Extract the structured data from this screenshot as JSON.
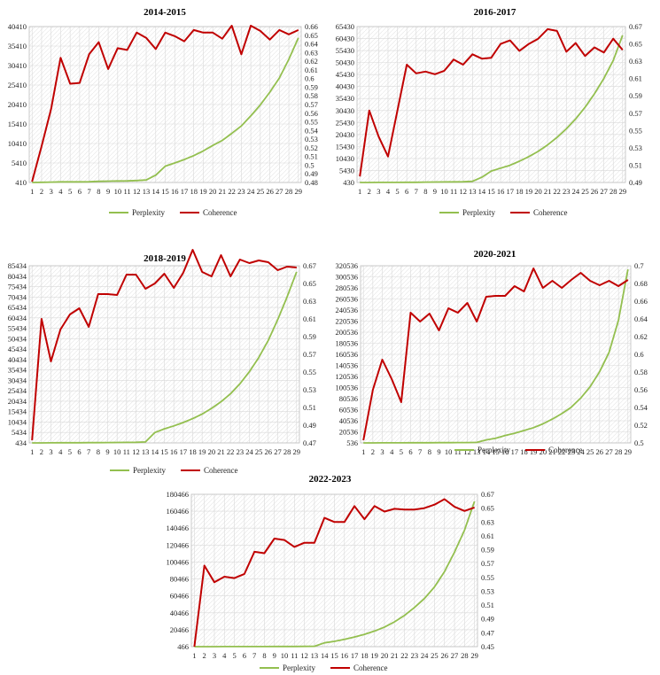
{
  "legend": {
    "perplexity": "Perplexity",
    "coherence": "Coherence"
  },
  "colors": {
    "perplexity": "#93bf4f",
    "coherence": "#c00000"
  },
  "chart_data": [
    {
      "type": "line",
      "title": "2014-2015",
      "x": [
        1,
        2,
        3,
        4,
        5,
        6,
        7,
        8,
        9,
        10,
        11,
        12,
        13,
        14,
        15,
        16,
        17,
        18,
        19,
        20,
        21,
        22,
        23,
        24,
        25,
        26,
        27,
        28,
        29
      ],
      "left_ticks": [
        "410",
        "5410",
        "10410",
        "15410",
        "20410",
        "25410",
        "30410",
        "35410",
        "40410"
      ],
      "right_ticks": [
        "0.48",
        "0.49",
        "0.5",
        "0.51",
        "0.52",
        "0.53",
        "0.54",
        "0.55",
        "0.56",
        "0.57",
        "0.58",
        "0.59",
        "0.6",
        "0.61",
        "0.62",
        "0.63",
        "0.64",
        "0.65",
        "0.66"
      ],
      "ylim_left": [
        410,
        40410
      ],
      "ylim_right": [
        0.48,
        0.66
      ],
      "series": [
        {
          "name": "Perplexity",
          "axis": "left",
          "values": [
            410,
            460,
            490,
            560,
            580,
            580,
            600,
            700,
            760,
            800,
            820,
            900,
            1050,
            2300,
            4600,
            5400,
            6300,
            7300,
            8500,
            9900,
            11200,
            13000,
            14900,
            17500,
            20300,
            23600,
            27200,
            32000,
            37500
          ]
        },
        {
          "name": "Coherence",
          "axis": "right",
          "values": [
            0.481,
            0.522,
            0.565,
            0.624,
            0.594,
            0.595,
            0.628,
            0.642,
            0.611,
            0.635,
            0.633,
            0.653,
            0.647,
            0.634,
            0.653,
            0.649,
            0.643,
            0.656,
            0.653,
            0.653,
            0.646,
            0.661,
            0.628,
            0.661,
            0.655,
            0.645,
            0.656,
            0.651,
            0.656
          ]
        }
      ]
    },
    {
      "type": "line",
      "title": "2016-2017",
      "x": [
        1,
        2,
        3,
        4,
        5,
        6,
        7,
        8,
        9,
        10,
        11,
        12,
        13,
        14,
        15,
        16,
        17,
        18,
        19,
        20,
        21,
        22,
        23,
        24,
        25,
        26,
        27,
        28,
        29
      ],
      "left_ticks": [
        "430",
        "5430",
        "10430",
        "15430",
        "20430",
        "25430",
        "30430",
        "35430",
        "40430",
        "45430",
        "50430",
        "55430",
        "60430",
        "65430"
      ],
      "right_ticks": [
        "0.49",
        "0.51",
        "0.53",
        "0.55",
        "0.57",
        "0.59",
        "0.61",
        "0.63",
        "0.65",
        "0.67"
      ],
      "ylim_left": [
        430,
        65430
      ],
      "ylim_right": [
        0.49,
        0.67
      ],
      "series": [
        {
          "name": "Perplexity",
          "axis": "left",
          "values": [
            430,
            440,
            450,
            460,
            480,
            500,
            520,
            560,
            600,
            640,
            680,
            720,
            900,
            2600,
            5200,
            6400,
            7600,
            9300,
            11200,
            13400,
            16100,
            19200,
            22800,
            26900,
            31800,
            37400,
            43800,
            51300,
            61800
          ]
        },
        {
          "name": "Coherence",
          "axis": "right",
          "values": [
            0.497,
            0.573,
            0.543,
            0.52,
            0.573,
            0.626,
            0.616,
            0.618,
            0.615,
            0.619,
            0.632,
            0.626,
            0.638,
            0.633,
            0.634,
            0.65,
            0.654,
            0.642,
            0.65,
            0.656,
            0.667,
            0.665,
            0.641,
            0.651,
            0.636,
            0.646,
            0.64,
            0.656,
            0.643
          ]
        }
      ]
    },
    {
      "type": "line",
      "title": "2018-2019",
      "x": [
        1,
        2,
        3,
        4,
        5,
        6,
        7,
        8,
        9,
        10,
        11,
        12,
        13,
        14,
        15,
        16,
        17,
        18,
        19,
        20,
        21,
        22,
        23,
        24,
        25,
        26,
        27,
        28,
        29
      ],
      "left_ticks": [
        "434",
        "5434",
        "10434",
        "15434",
        "20434",
        "25434",
        "30434",
        "35434",
        "40434",
        "45434",
        "50434",
        "55434",
        "60434",
        "65434",
        "70434",
        "75434",
        "80434",
        "85434"
      ],
      "right_ticks": [
        "0.47",
        "0.49",
        "0.51",
        "0.53",
        "0.55",
        "0.57",
        "0.59",
        "0.61",
        "0.63",
        "0.65",
        "0.67"
      ],
      "ylim_left": [
        434,
        85434
      ],
      "ylim_right": [
        0.47,
        0.67
      ],
      "series": [
        {
          "name": "Perplexity",
          "axis": "left",
          "values": [
            434,
            450,
            460,
            500,
            520,
            540,
            560,
            580,
            600,
            640,
            680,
            720,
            900,
            5400,
            7200,
            8600,
            10200,
            12100,
            14300,
            17000,
            20200,
            24000,
            28800,
            34600,
            41400,
            49600,
            59600,
            70500,
            82500
          ]
        },
        {
          "name": "Coherence",
          "axis": "right",
          "values": [
            0.473,
            0.61,
            0.562,
            0.598,
            0.615,
            0.622,
            0.601,
            0.638,
            0.638,
            0.637,
            0.66,
            0.66,
            0.644,
            0.65,
            0.661,
            0.645,
            0.662,
            0.688,
            0.663,
            0.658,
            0.682,
            0.658,
            0.677,
            0.673,
            0.676,
            0.674,
            0.665,
            0.669,
            0.668
          ]
        }
      ]
    },
    {
      "type": "line",
      "title": "2020-2021",
      "x": [
        1,
        2,
        3,
        4,
        5,
        6,
        7,
        8,
        9,
        10,
        11,
        12,
        13,
        14,
        15,
        16,
        17,
        18,
        19,
        20,
        21,
        22,
        23,
        24,
        25,
        26,
        27,
        28,
        29
      ],
      "left_ticks": [
        "536",
        "20536",
        "40536",
        "60536",
        "80536",
        "100536",
        "120536",
        "140536",
        "160536",
        "180536",
        "200536",
        "220536",
        "240536",
        "260536",
        "280536",
        "300536",
        "320536"
      ],
      "right_ticks": [
        "0.5",
        "0.52",
        "0.54",
        "0.56",
        "0.58",
        "0.6",
        "0.62",
        "0.64",
        "0.66",
        "0.68",
        "0.7"
      ],
      "ylim_left": [
        536,
        320536
      ],
      "ylim_right": [
        0.5,
        0.7
      ],
      "series": [
        {
          "name": "Perplexity",
          "axis": "left",
          "values": [
            536,
            600,
            650,
            700,
            750,
            800,
            850,
            900,
            950,
            1000,
            1100,
            1200,
            1500,
            6000,
            9000,
            14000,
            18000,
            23000,
            28000,
            35000,
            43500,
            53500,
            65000,
            81500,
            102000,
            129000,
            164000,
            222000,
            314000
          ]
        },
        {
          "name": "Coherence",
          "axis": "right",
          "values": [
            0.503,
            0.56,
            0.594,
            0.572,
            0.546,
            0.647,
            0.637,
            0.646,
            0.627,
            0.652,
            0.647,
            0.658,
            0.637,
            0.665,
            0.666,
            0.666,
            0.677,
            0.671,
            0.697,
            0.675,
            0.683,
            0.675,
            0.684,
            0.692,
            0.683,
            0.678,
            0.683,
            0.677,
            0.684
          ]
        }
      ]
    },
    {
      "type": "line",
      "title": "2022-2023",
      "x": [
        1,
        2,
        3,
        4,
        5,
        6,
        7,
        8,
        9,
        10,
        11,
        12,
        13,
        14,
        15,
        16,
        17,
        18,
        19,
        20,
        21,
        22,
        23,
        24,
        25,
        26,
        27,
        28,
        29
      ],
      "left_ticks": [
        "466",
        "20466",
        "40466",
        "60466",
        "80466",
        "100466",
        "120466",
        "140466",
        "160466",
        "180466"
      ],
      "right_ticks": [
        "0.45",
        "0.47",
        "0.49",
        "0.51",
        "0.53",
        "0.55",
        "0.57",
        "0.59",
        "0.61",
        "0.63",
        "0.65",
        "0.67"
      ],
      "ylim_left": [
        466,
        180466
      ],
      "ylim_right": [
        0.45,
        0.67
      ],
      "series": [
        {
          "name": "Perplexity",
          "axis": "left",
          "values": [
            466,
            490,
            510,
            530,
            550,
            570,
            590,
            610,
            640,
            680,
            720,
            760,
            900,
            5000,
            6700,
            9000,
            11900,
            15000,
            18900,
            23600,
            29800,
            37400,
            46700,
            57300,
            71000,
            89000,
            112000,
            138000,
            172000
          ]
        },
        {
          "name": "Coherence",
          "axis": "right",
          "values": [
            0.45,
            0.567,
            0.543,
            0.551,
            0.549,
            0.555,
            0.587,
            0.585,
            0.606,
            0.604,
            0.594,
            0.6,
            0.6,
            0.636,
            0.63,
            0.63,
            0.653,
            0.634,
            0.653,
            0.645,
            0.649,
            0.648,
            0.648,
            0.65,
            0.655,
            0.663,
            0.652,
            0.646,
            0.651
          ]
        }
      ]
    }
  ]
}
